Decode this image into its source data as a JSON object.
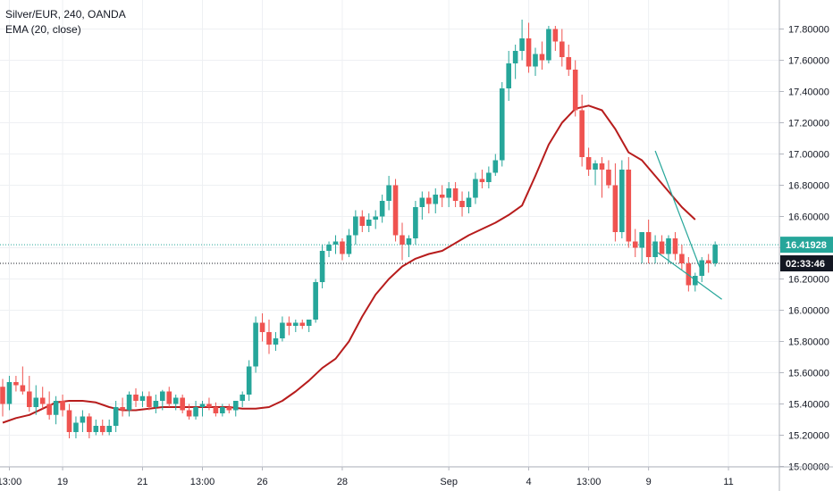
{
  "legend": {
    "symbol_line": "Silver/EUR, 240, OANDA",
    "indicator_line": "EMA (20, close)"
  },
  "colors": {
    "up": "#26a69a",
    "down": "#ef5350",
    "ema": "#b71c1c",
    "trendline": "#26a69a",
    "grid": "#eef0f3",
    "price_label": "#26a69a",
    "countdown_label": "#131722"
  },
  "labels": {
    "last_price": "16.41928",
    "countdown": "02:33:46"
  },
  "chart_data": {
    "type": "candlestick",
    "title": "Silver/EUR, 240, OANDA",
    "ylim": [
      14.9,
      17.94
    ],
    "y_ticks": [
      "15.00000",
      "15.20000",
      "15.40000",
      "15.60000",
      "15.80000",
      "16.00000",
      "16.20000",
      "16.40000",
      "16.60000",
      "16.80000",
      "17.00000",
      "17.20000",
      "17.40000",
      "17.60000",
      "17.80000"
    ],
    "x_ticks": [
      {
        "label": "13:00",
        "index": 1
      },
      {
        "label": "19",
        "index": 9
      },
      {
        "label": "21",
        "index": 21
      },
      {
        "label": "13:00",
        "index": 30
      },
      {
        "label": "26",
        "index": 39
      },
      {
        "label": "28",
        "index": 51
      },
      {
        "label": "Sep",
        "index": 67
      },
      {
        "label": "4",
        "index": 79
      },
      {
        "label": "13:00",
        "index": 88
      },
      {
        "label": "9",
        "index": 97
      },
      {
        "label": "11",
        "index": 109
      }
    ],
    "candles": [
      [
        15.51,
        15.56,
        15.32,
        15.4
      ],
      [
        15.4,
        15.58,
        15.36,
        15.54
      ],
      [
        15.54,
        15.58,
        15.48,
        15.52
      ],
      [
        15.52,
        15.64,
        15.46,
        15.48
      ],
      [
        15.48,
        15.58,
        15.35,
        15.38
      ],
      [
        15.38,
        15.52,
        15.33,
        15.44
      ],
      [
        15.44,
        15.51,
        15.37,
        15.4
      ],
      [
        15.4,
        15.48,
        15.3,
        15.33
      ],
      [
        15.33,
        15.45,
        15.27,
        15.42
      ],
      [
        15.42,
        15.46,
        15.32,
        15.36
      ],
      [
        15.36,
        15.4,
        15.18,
        15.22
      ],
      [
        15.22,
        15.32,
        15.18,
        15.28
      ],
      [
        15.28,
        15.36,
        15.22,
        15.32
      ],
      [
        15.32,
        15.34,
        15.18,
        15.22
      ],
      [
        15.22,
        15.3,
        15.2,
        15.26
      ],
      [
        15.26,
        15.3,
        15.2,
        15.22
      ],
      [
        15.22,
        15.3,
        15.2,
        15.26
      ],
      [
        15.26,
        15.42,
        15.22,
        15.38
      ],
      [
        15.38,
        15.44,
        15.32,
        15.36
      ],
      [
        15.36,
        15.48,
        15.32,
        15.46
      ],
      [
        15.46,
        15.5,
        15.38,
        15.42
      ],
      [
        15.42,
        15.48,
        15.38,
        15.45
      ],
      [
        15.45,
        15.48,
        15.36,
        15.38
      ],
      [
        15.38,
        15.46,
        15.34,
        15.42
      ],
      [
        15.42,
        15.49,
        15.36,
        15.48
      ],
      [
        15.48,
        15.51,
        15.38,
        15.4
      ],
      [
        15.4,
        15.46,
        15.36,
        15.44
      ],
      [
        15.44,
        15.46,
        15.34,
        15.36
      ],
      [
        15.36,
        15.4,
        15.3,
        15.32
      ],
      [
        15.32,
        15.42,
        15.3,
        15.38
      ],
      [
        15.38,
        15.42,
        15.32,
        15.4
      ],
      [
        15.4,
        15.44,
        15.36,
        15.38
      ],
      [
        15.38,
        15.41,
        15.32,
        15.34
      ],
      [
        15.34,
        15.4,
        15.32,
        15.38
      ],
      [
        15.38,
        15.4,
        15.34,
        15.36
      ],
      [
        15.36,
        15.42,
        15.32,
        15.42
      ],
      [
        15.42,
        15.48,
        15.38,
        15.46
      ],
      [
        15.46,
        15.68,
        15.42,
        15.64
      ],
      [
        15.64,
        15.96,
        15.6,
        15.92
      ],
      [
        15.92,
        15.98,
        15.8,
        15.86
      ],
      [
        15.86,
        15.94,
        15.72,
        15.78
      ],
      [
        15.78,
        15.86,
        15.74,
        15.82
      ],
      [
        15.82,
        15.96,
        15.8,
        15.92
      ],
      [
        15.92,
        15.96,
        15.84,
        15.9
      ],
      [
        15.9,
        15.94,
        15.86,
        15.92
      ],
      [
        15.92,
        15.94,
        15.88,
        15.9
      ],
      [
        15.9,
        15.94,
        15.86,
        15.94
      ],
      [
        15.94,
        16.2,
        15.92,
        16.18
      ],
      [
        16.18,
        16.42,
        16.14,
        16.38
      ],
      [
        16.38,
        16.44,
        16.34,
        16.42
      ],
      [
        16.42,
        16.48,
        16.36,
        16.44
      ],
      [
        16.44,
        16.46,
        16.32,
        16.36
      ],
      [
        16.36,
        16.52,
        16.34,
        16.48
      ],
      [
        16.48,
        16.64,
        16.42,
        16.6
      ],
      [
        16.6,
        16.64,
        16.5,
        16.54
      ],
      [
        16.54,
        16.62,
        16.5,
        16.58
      ],
      [
        16.58,
        16.64,
        16.52,
        16.6
      ],
      [
        16.6,
        16.74,
        16.56,
        16.7
      ],
      [
        16.7,
        16.86,
        16.64,
        16.8
      ],
      [
        16.8,
        16.84,
        16.44,
        16.48
      ],
      [
        16.48,
        16.56,
        16.32,
        16.42
      ],
      [
        16.42,
        16.48,
        16.34,
        16.46
      ],
      [
        16.46,
        16.7,
        16.42,
        16.66
      ],
      [
        16.66,
        16.76,
        16.58,
        16.72
      ],
      [
        16.72,
        16.76,
        16.62,
        16.68
      ],
      [
        16.68,
        16.78,
        16.62,
        16.74
      ],
      [
        16.74,
        16.8,
        16.66,
        16.72
      ],
      [
        16.72,
        16.82,
        16.66,
        16.78
      ],
      [
        16.78,
        16.82,
        16.66,
        16.7
      ],
      [
        16.7,
        16.76,
        16.6,
        16.66
      ],
      [
        16.66,
        16.76,
        16.62,
        16.72
      ],
      [
        16.72,
        16.88,
        16.68,
        16.84
      ],
      [
        16.84,
        16.9,
        16.78,
        16.82
      ],
      [
        16.82,
        16.92,
        16.78,
        16.88
      ],
      [
        16.88,
        17.0,
        16.86,
        16.96
      ],
      [
        16.96,
        17.46,
        16.92,
        17.42
      ],
      [
        17.42,
        17.66,
        17.34,
        17.58
      ],
      [
        17.58,
        17.7,
        17.48,
        17.66
      ],
      [
        17.66,
        17.86,
        17.6,
        17.74
      ],
      [
        17.74,
        17.84,
        17.52,
        17.56
      ],
      [
        17.56,
        17.68,
        17.5,
        17.64
      ],
      [
        17.64,
        17.72,
        17.54,
        17.6
      ],
      [
        17.6,
        17.82,
        17.58,
        17.8
      ],
      [
        17.8,
        17.82,
        17.66,
        17.72
      ],
      [
        17.72,
        17.8,
        17.56,
        17.62
      ],
      [
        17.62,
        17.7,
        17.5,
        17.54
      ],
      [
        17.54,
        17.6,
        17.24,
        17.28
      ],
      [
        17.28,
        17.38,
        16.92,
        16.98
      ],
      [
        16.98,
        17.04,
        16.86,
        16.9
      ],
      [
        16.9,
        16.96,
        16.8,
        16.94
      ],
      [
        16.94,
        16.98,
        16.72,
        16.9
      ],
      [
        16.9,
        16.96,
        16.78,
        16.8
      ],
      [
        16.8,
        16.94,
        16.44,
        16.5
      ],
      [
        16.5,
        16.96,
        16.46,
        16.9
      ],
      [
        16.9,
        16.98,
        16.4,
        16.44
      ],
      [
        16.44,
        16.52,
        16.34,
        16.4
      ],
      [
        16.4,
        16.5,
        16.3,
        16.5
      ],
      [
        16.5,
        16.58,
        16.3,
        16.34
      ],
      [
        16.34,
        16.48,
        16.3,
        16.44
      ],
      [
        16.44,
        16.48,
        16.36,
        16.36
      ],
      [
        16.36,
        16.48,
        16.3,
        16.46
      ],
      [
        16.46,
        16.5,
        16.32,
        16.36
      ],
      [
        16.36,
        16.42,
        16.26,
        16.3
      ],
      [
        16.3,
        16.34,
        16.12,
        16.16
      ],
      [
        16.16,
        16.24,
        16.12,
        16.22
      ],
      [
        16.22,
        16.34,
        16.18,
        16.32
      ],
      [
        16.32,
        16.36,
        16.24,
        16.3
      ],
      [
        16.3,
        16.44,
        16.28,
        16.42
      ]
    ],
    "ema": [
      [
        0,
        15.28
      ],
      [
        2,
        15.31
      ],
      [
        4,
        15.33
      ],
      [
        6,
        15.37
      ],
      [
        8,
        15.41
      ],
      [
        10,
        15.42
      ],
      [
        12,
        15.42
      ],
      [
        14,
        15.41
      ],
      [
        16,
        15.38
      ],
      [
        18,
        15.36
      ],
      [
        20,
        15.36
      ],
      [
        22,
        15.37
      ],
      [
        24,
        15.38
      ],
      [
        26,
        15.38
      ],
      [
        28,
        15.38
      ],
      [
        30,
        15.38
      ],
      [
        32,
        15.38
      ],
      [
        34,
        15.38
      ],
      [
        36,
        15.37
      ],
      [
        38,
        15.37
      ],
      [
        40,
        15.38
      ],
      [
        42,
        15.42
      ],
      [
        44,
        15.48
      ],
      [
        46,
        15.55
      ],
      [
        48,
        15.63
      ],
      [
        50,
        15.69
      ],
      [
        52,
        15.8
      ],
      [
        54,
        15.96
      ],
      [
        56,
        16.1
      ],
      [
        58,
        16.2
      ],
      [
        60,
        16.28
      ],
      [
        62,
        16.33
      ],
      [
        64,
        16.36
      ],
      [
        66,
        16.38
      ],
      [
        68,
        16.43
      ],
      [
        70,
        16.48
      ],
      [
        72,
        16.52
      ],
      [
        74,
        16.56
      ],
      [
        76,
        16.61
      ],
      [
        78,
        16.67
      ],
      [
        80,
        16.86
      ],
      [
        82,
        17.06
      ],
      [
        84,
        17.2
      ],
      [
        86,
        17.29
      ],
      [
        88,
        17.31
      ],
      [
        90,
        17.28
      ],
      [
        92,
        17.16
      ],
      [
        94,
        17.01
      ],
      [
        96,
        16.96
      ],
      [
        98,
        16.86
      ],
      [
        100,
        16.76
      ],
      [
        102,
        16.66
      ],
      [
        104,
        16.58
      ]
    ],
    "trendlines": [
      {
        "from": [
          98,
          17.02
        ],
        "to": [
          105,
          16.24
        ]
      },
      {
        "from": [
          98,
          16.38
        ],
        "to": [
          108,
          16.07
        ]
      }
    ],
    "horizontal_lines": [
      {
        "value": 16.41928,
        "style": "dotted",
        "color": "#26a69a"
      },
      {
        "value": 16.3,
        "style": "dotted",
        "color": "#131722"
      }
    ]
  }
}
